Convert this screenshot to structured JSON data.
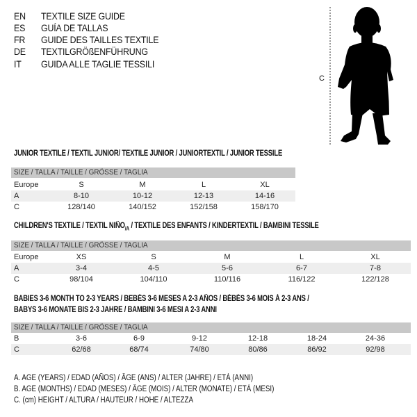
{
  "languages": [
    {
      "code": "EN",
      "text": "TEXTILE SIZE GUIDE"
    },
    {
      "code": "ES",
      "text": "GUÍA DE TALLAS"
    },
    {
      "code": "FR",
      "text": "GUIDE DES TAILLES TEXTILE"
    },
    {
      "code": "DE",
      "text": "TEXTILGRÖßENFÜHRUNG"
    },
    {
      "code": "IT",
      "text": "GUIDA ALLE TAGLIE TESSILI"
    }
  ],
  "figure": {
    "measure_label": "C",
    "icon": "baby-silhouette"
  },
  "junior": {
    "title": "JUNIOR TEXTILE / TEXTIL JUNIOR/ TEXTILE JUNIOR / JUNIORTEXTIL / JUNIOR TESSILE",
    "header": "SIZE / TALLA / TAILLE / GRÖSSE / TAGLIA",
    "rows": [
      {
        "label": "Europe",
        "cells": [
          "S",
          "M",
          "L",
          "XL"
        ]
      },
      {
        "label": "A",
        "cells": [
          "8-10",
          "10-12",
          "12-13",
          "14-16"
        ]
      },
      {
        "label": "C",
        "cells": [
          "128/140",
          "140/152",
          "152/158",
          "158/170"
        ]
      }
    ]
  },
  "children": {
    "title_prefix": "CHILDREN'S TEXTILE / TEXTIL NIÑO",
    "title_sub": "/A",
    "title_suffix": " / TEXTILE DES ENFANTS / KINDERTEXTIL / BAMBINI TESSILE",
    "header": "SIZE / TALLA / TAILLE / GRÖSSE / TAGLIA",
    "rows": [
      {
        "label": "Europe",
        "cells": [
          "XS",
          "S",
          "M",
          "L",
          "XL"
        ]
      },
      {
        "label": "A",
        "cells": [
          "3-4",
          "4-5",
          "5-6",
          "6-7",
          "7-8"
        ]
      },
      {
        "label": "C",
        "cells": [
          "98/104",
          "104/110",
          "110/116",
          "116/122",
          "122/128"
        ]
      }
    ]
  },
  "babies": {
    "title_line1": "BABIES 3-6 MONTH TO 2-3 YEARS / BEBÉS 3-6 MESES A 2-3 AÑOS / BÉBÉS 3-6 MOIS À 2-3 ANS /",
    "title_line2": "BABYS 3-6 MONATE BIS 2-3 JAHRE / BAMBINI 3-6 MESI A 2-3 ANNI",
    "header": "SIZE / TALLA / TAILLE / GRÖSSE / TAGLIA",
    "rows": [
      {
        "label": "B",
        "cells": [
          "3-6",
          "6-9",
          "9-12",
          "12-18",
          "18-24",
          "24-36"
        ]
      },
      {
        "label": "C",
        "cells": [
          "62/68",
          "68/74",
          "74/80",
          "80/86",
          "86/92",
          "92/98"
        ]
      }
    ]
  },
  "legend": [
    "A. AGE (YEARS) / EDAD (AÑOS) / ÂGE (ANS) / ALTER (JAHRE) / ETÀ (ANNI)",
    "B. AGE (MONTHS) / EDAD (MESES) / ÂGE (MOIS) / ALTER (MONATE) / ETÀ (MESI)",
    "C. (cm) HEIGHT / ALTURA / HAUTEUR / HÖHE / ALTEZZA"
  ]
}
